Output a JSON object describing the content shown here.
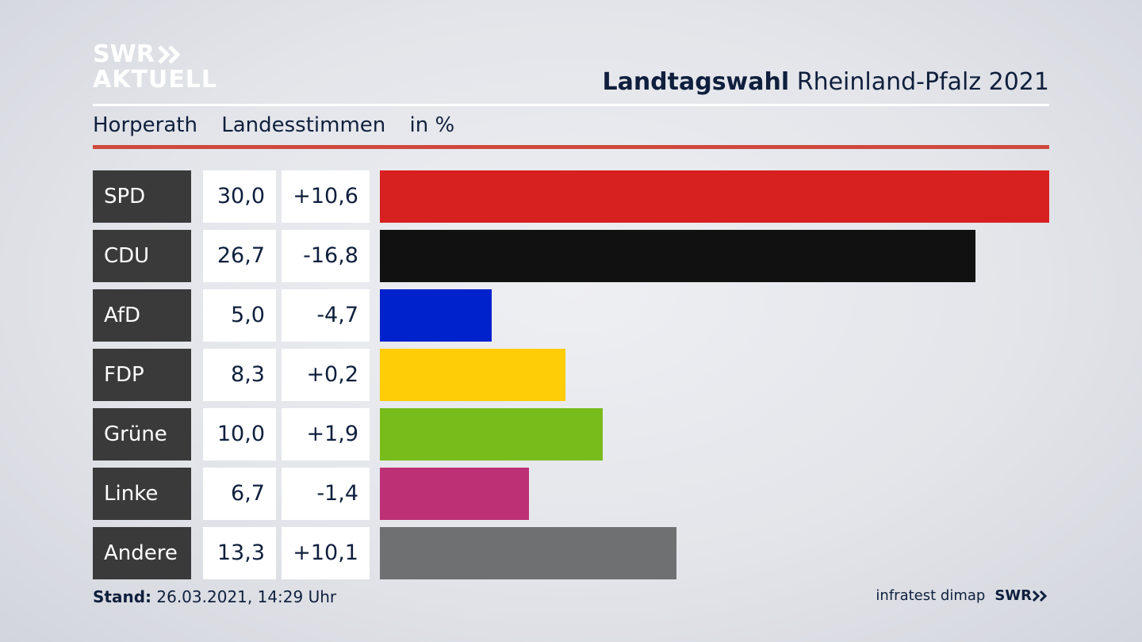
{
  "logo": {
    "line1": "SWR",
    "line2": "AKTUELL"
  },
  "header": {
    "title_bold": "Landtagswahl",
    "title_rest": "Rheinland-Pfalz 2021"
  },
  "subheader": {
    "location": "Horperath",
    "vote_type": "Landesstimmen",
    "unit": "in %"
  },
  "chart_data": {
    "type": "bar",
    "orientation": "horizontal",
    "categories": [
      "SPD",
      "CDU",
      "AfD",
      "FDP",
      "Grüne",
      "Linke",
      "Andere"
    ],
    "values": [
      30.0,
      26.7,
      5.0,
      8.3,
      10.0,
      6.7,
      13.3
    ],
    "value_labels": [
      "30,0",
      "26,7",
      "5,0",
      "8,3",
      "10,0",
      "6,7",
      "13,3"
    ],
    "diff_labels": [
      "+10,6",
      "-16,8",
      "-4,7",
      "+0,2",
      "+1,9",
      "-1,4",
      "+10,1"
    ],
    "colors": [
      "#d72020",
      "#111111",
      "#0022cc",
      "#ffcc08",
      "#78bc1b",
      "#bd3075",
      "#6f7072"
    ],
    "xlim": [
      0,
      30.0
    ]
  },
  "footer": {
    "stand_label": "Stand:",
    "stand_value": "26.03.2021, 14:29 Uhr",
    "source": "infratest dimap",
    "brand": "SWR"
  }
}
